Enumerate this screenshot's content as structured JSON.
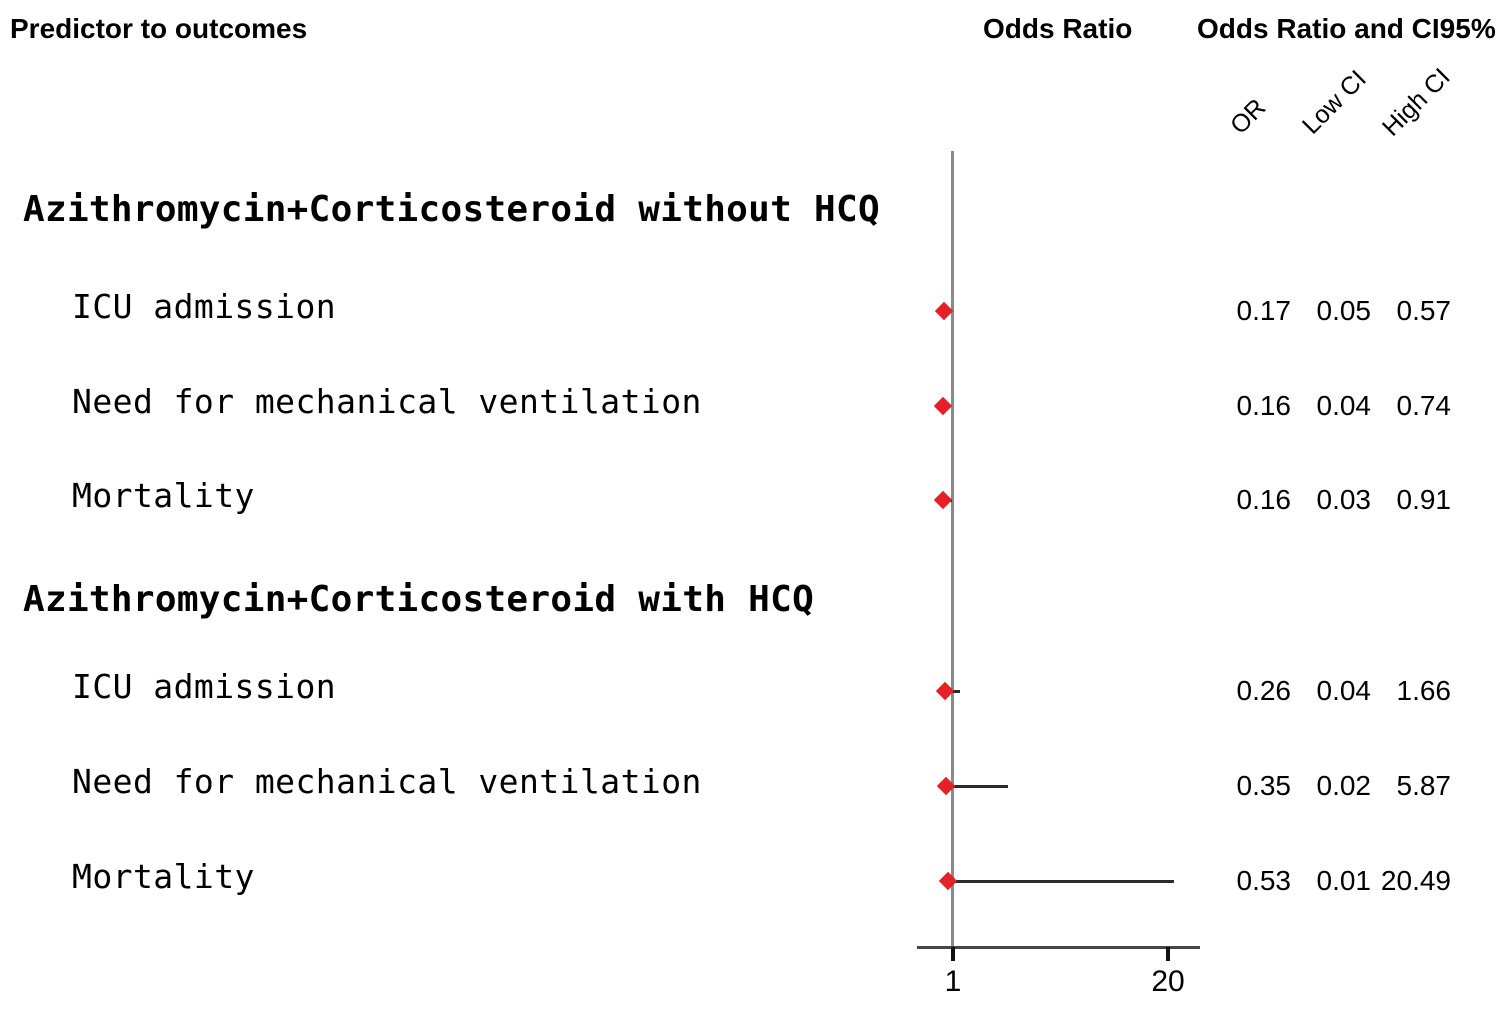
{
  "header": {
    "left": "Predictor to outcomes",
    "center": "Odds Ratio",
    "right": "Odds Ratio and CI95%"
  },
  "value_columns": {
    "or": "OR",
    "low": "Low CI",
    "high": "High CI"
  },
  "colors": {
    "marker": "#e42127",
    "reference_line": "#8a8a8a",
    "axis_line": "#454545",
    "ci_line": "#2b2b2b",
    "text": "#000000"
  },
  "chart_data": {
    "type": "scatter",
    "subtype": "forest-plot",
    "title": "",
    "xlabel": "",
    "ylabel": "",
    "x_scale": "linear",
    "xlim": [
      -2.2,
      22.6
    ],
    "reference_value": 1,
    "axis_ticks": [
      {
        "value": 1,
        "label": "1"
      },
      {
        "value": 20,
        "label": "20"
      }
    ],
    "grid": false,
    "legend_position": "none",
    "groups": [
      {
        "label": "Azithromycin+Corticosteroid without HCQ",
        "rows": [
          {
            "label": "ICU admission",
            "or": 0.17,
            "low": 0.05,
            "high": 0.57
          },
          {
            "label": "Need for mechanical ventilation",
            "or": 0.16,
            "low": 0.04,
            "high": 0.74
          },
          {
            "label": "Mortality",
            "or": 0.16,
            "low": 0.03,
            "high": 0.91
          }
        ]
      },
      {
        "label": "Azithromycin+Corticosteroid with HCQ",
        "rows": [
          {
            "label": "ICU admission",
            "or": 0.26,
            "low": 0.04,
            "high": 1.66
          },
          {
            "label": "Need for mechanical ventilation",
            "or": 0.35,
            "low": 0.02,
            "high": 5.87
          },
          {
            "label": "Mortality",
            "or": 0.53,
            "low": 0.01,
            "high": 20.49
          }
        ]
      }
    ]
  }
}
